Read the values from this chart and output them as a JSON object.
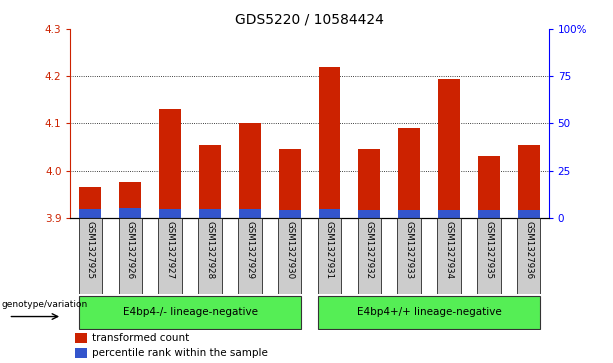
{
  "title": "GDS5220 / 10584424",
  "samples": [
    "GSM1327925",
    "GSM1327926",
    "GSM1327927",
    "GSM1327928",
    "GSM1327929",
    "GSM1327930",
    "GSM1327931",
    "GSM1327932",
    "GSM1327933",
    "GSM1327934",
    "GSM1327935",
    "GSM1327936"
  ],
  "red_values": [
    3.965,
    3.975,
    4.13,
    4.055,
    4.1,
    4.045,
    4.22,
    4.045,
    4.09,
    4.195,
    4.03,
    4.055
  ],
  "blue_values": [
    0.018,
    0.02,
    0.018,
    0.018,
    0.018,
    0.017,
    0.018,
    0.017,
    0.017,
    0.017,
    0.017,
    0.017
  ],
  "base": 3.9,
  "ylim_left": [
    3.9,
    4.3
  ],
  "ylim_right": [
    0,
    100
  ],
  "yticks_left": [
    3.9,
    4.0,
    4.1,
    4.2,
    4.3
  ],
  "yticks_right": [
    0,
    25,
    50,
    75,
    100
  ],
  "ytick_labels_right": [
    "0",
    "25",
    "50",
    "75",
    "100%"
  ],
  "grid_lines": [
    4.0,
    4.1,
    4.2
  ],
  "group1_label": "E4bp4-/- lineage-negative",
  "group2_label": "E4bp4+/+ lineage-negative",
  "group1_indices": [
    0,
    1,
    2,
    3,
    4,
    5
  ],
  "group2_indices": [
    6,
    7,
    8,
    9,
    10,
    11
  ],
  "genotype_label": "genotype/variation",
  "legend_red": "transformed count",
  "legend_blue": "percentile rank within the sample",
  "bar_width": 0.55,
  "red_color": "#cc2200",
  "blue_color": "#3355cc",
  "group_color": "#55ee55",
  "tick_bg_color": "#cccccc",
  "title_fontsize": 10,
  "tick_fontsize": 7.5,
  "legend_fontsize": 7.5
}
